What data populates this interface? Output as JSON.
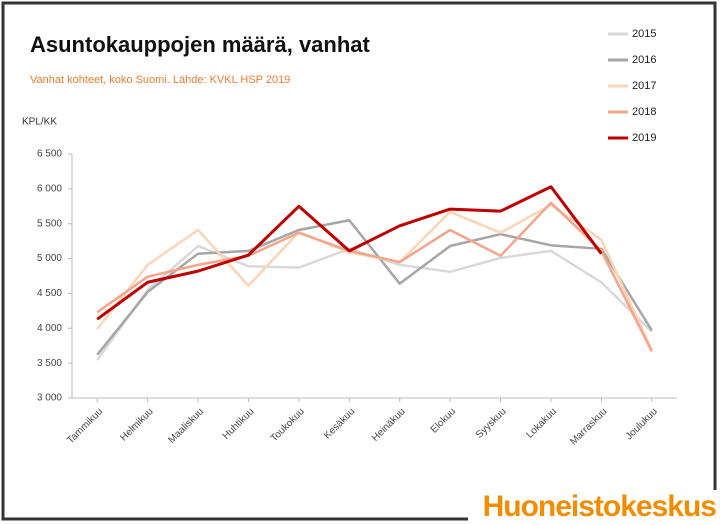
{
  "chart_data": {
    "type": "line",
    "title": "Asuntokauppojen määrä, vanhat",
    "subtitle": "Vanhat kohteet, koko Suomi. Lähde: KVKL HSP 2019",
    "y_label": "KPL/KK",
    "logo": "Huoneistokeskus",
    "categories": [
      "Tammikuu",
      "Helmikuu",
      "Maaliskuu",
      "Huhtikuu",
      "Toukokuu",
      "Kesäkuu",
      "Heinäkuu",
      "Elokuu",
      "Syyskuu",
      "Lokakuu",
      "Marraskuu",
      "Joulukuu"
    ],
    "series": [
      {
        "name": "2015",
        "color": "#d9d9d9",
        "values": [
          3545,
          4550,
          5180,
          4890,
          4870,
          5140,
          4910,
          4810,
          5010,
          5110,
          4660,
          3950
        ]
      },
      {
        "name": "2016",
        "color": "#a6a6a6",
        "values": [
          3620,
          4520,
          5070,
          5110,
          5410,
          5550,
          4640,
          5180,
          5350,
          5190,
          5140,
          3970
        ]
      },
      {
        "name": "2017",
        "color": "#fbd5b5",
        "values": [
          3990,
          4910,
          5410,
          4610,
          5380,
          5090,
          4950,
          5670,
          5370,
          5770,
          5270,
          3690
        ]
      },
      {
        "name": "2018",
        "color": "#f4a58a",
        "values": [
          4230,
          4740,
          4910,
          5040,
          5370,
          5110,
          4950,
          5410,
          5040,
          5800,
          5110,
          3670
        ]
      },
      {
        "name": "2019",
        "color": "#c00000",
        "values": [
          4130,
          4660,
          4820,
          5050,
          5750,
          5110,
          5470,
          5710,
          5680,
          6030,
          5070,
          null
        ]
      }
    ],
    "ylim": [
      3000,
      6500
    ],
    "yticks": [
      {
        "value": 3000,
        "label": "3 000"
      },
      {
        "value": 3500,
        "label": "3 500"
      },
      {
        "value": 4000,
        "label": "4 000"
      },
      {
        "value": 4500,
        "label": "4 500"
      },
      {
        "value": 5000,
        "label": "5 000"
      },
      {
        "value": 5500,
        "label": "5 500"
      },
      {
        "value": 6000,
        "label": "6 000"
      },
      {
        "value": 6500,
        "label": "6 500"
      }
    ],
    "legend": "top-right"
  }
}
